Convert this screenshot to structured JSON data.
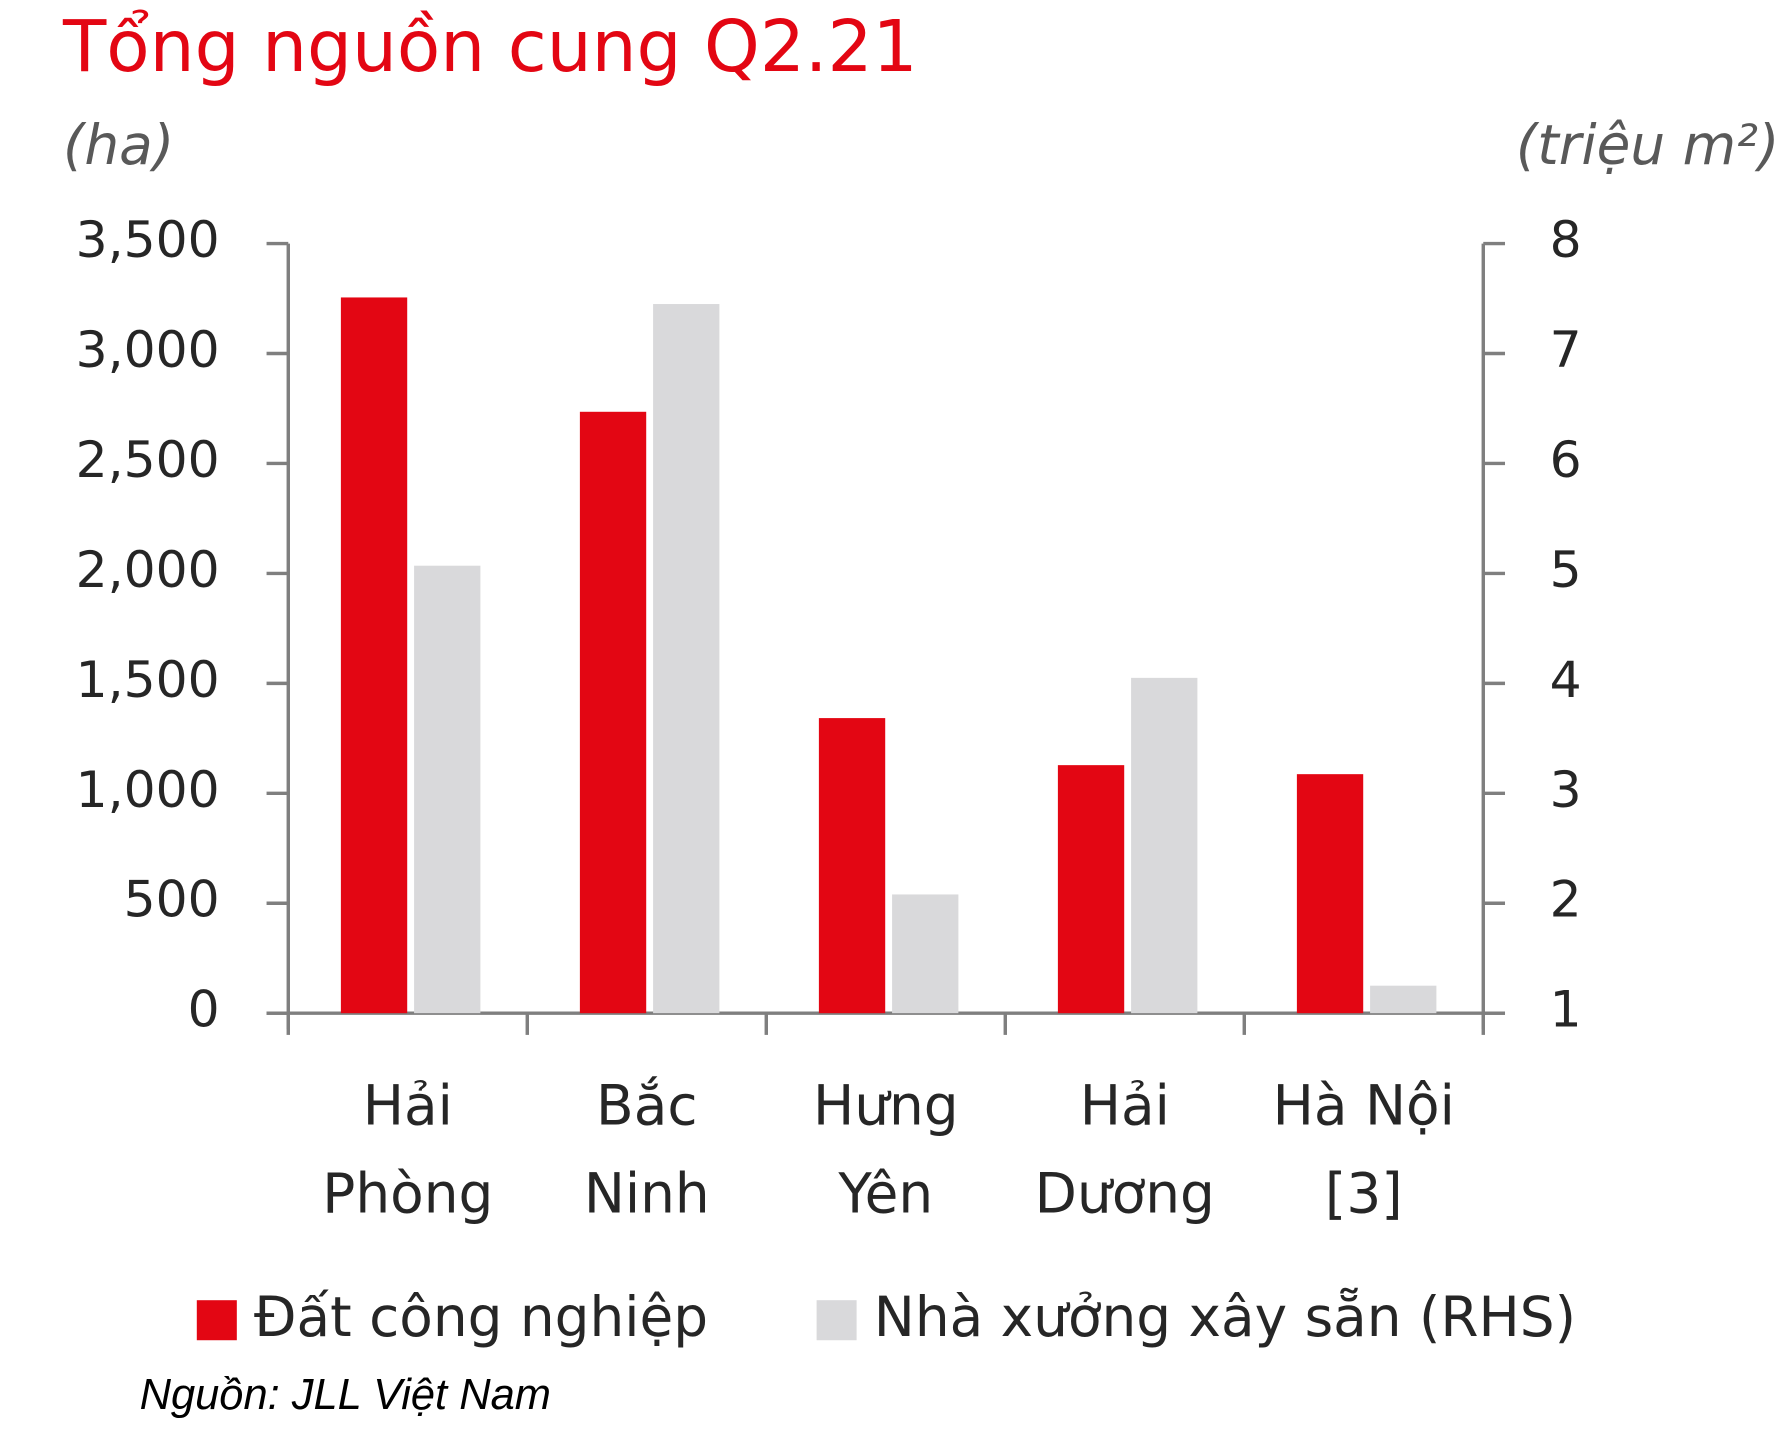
{
  "chart_data": {
    "type": "bar",
    "title": "Tổng nguồn cung Q2.21",
    "y_label": "(ha)",
    "y2_label": "(triệu m²)",
    "categories": [
      [
        "Hải",
        "Phòng"
      ],
      [
        "Bắc",
        "Ninh"
      ],
      [
        "Hưng",
        "Yên"
      ],
      [
        "Hải",
        "Dương"
      ],
      [
        "Hà Nội",
        "[3]"
      ]
    ],
    "series": [
      {
        "name": "Đất công nghiệp",
        "color": "#e30613",
        "values": [
          3255,
          2735,
          1342,
          1128,
          1087
        ]
      },
      {
        "name": "Nhà xưởng xây sẵn (RHS)",
        "color": "#d9d9db",
        "axis": "y2",
        "values": [
          5.07,
          7.45,
          2.08,
          4.05,
          1.25
        ]
      }
    ],
    "ylim": [
      0,
      3500
    ],
    "yticks": [
      0,
      {
        "value": 500,
        "label": "500"
      },
      {
        "value": 1000,
        "label": "1,000"
      },
      {
        "value": 1500,
        "label": "1,500"
      },
      {
        "value": 2000,
        "label": "2,000"
      },
      {
        "value": 2500,
        "label": "2,500"
      },
      {
        "value": 3000,
        "label": "3,000"
      },
      {
        "value": 3500,
        "label": "3,500"
      }
    ],
    "y2lim": [
      1,
      8
    ],
    "y2ticks": [
      1,
      2,
      3,
      4,
      5,
      6,
      7,
      8
    ],
    "legend": "bottom",
    "source": "Nguồn: JLL Việt Nam"
  }
}
